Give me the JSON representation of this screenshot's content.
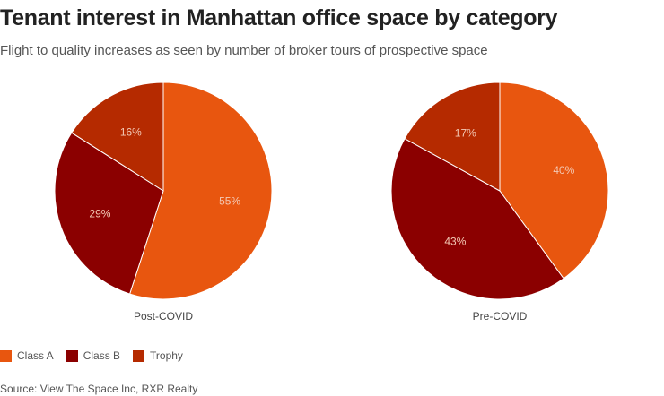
{
  "title": "Tenant interest in Manhattan office space by category",
  "subtitle": "Flight to quality increases as seen by number of broker tours of prospective space",
  "source": "Source: View The Space Inc, RXR Realty",
  "chart_data": [
    {
      "type": "pie",
      "label": "Post-COVID",
      "categories": [
        "Class A",
        "Class B",
        "Trophy"
      ],
      "values": [
        55,
        29,
        16
      ],
      "data_labels": [
        "55%",
        "29%",
        "16%"
      ]
    },
    {
      "type": "pie",
      "label": "Pre-COVID",
      "categories": [
        "Class A",
        "Class B",
        "Trophy"
      ],
      "values": [
        40,
        43,
        17
      ],
      "data_labels": [
        "40%",
        "43%",
        "17%"
      ]
    }
  ],
  "legend": {
    "placement": "bottom-left",
    "items": [
      {
        "label": "Class A",
        "color": "#e8560f"
      },
      {
        "label": "Class B",
        "color": "#8b0000"
      },
      {
        "label": "Trophy",
        "color": "#b52a00"
      }
    ]
  }
}
